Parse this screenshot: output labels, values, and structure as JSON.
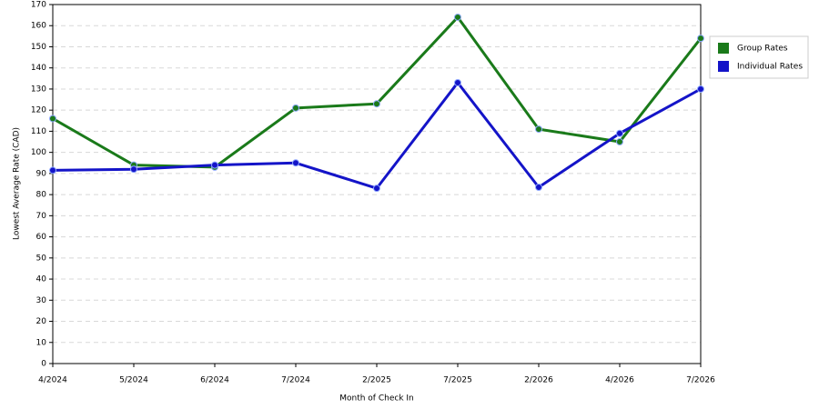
{
  "chart_data": {
    "type": "line",
    "x_label": "Month of Check In",
    "y_label": "Lowest Average Rate (CAD)",
    "categories": [
      "4/2024",
      "5/2024",
      "6/2024",
      "7/2024",
      "2/2025",
      "7/2025",
      "2/2026",
      "4/2026",
      "7/2026"
    ],
    "series": [
      {
        "name": "Group Rates",
        "color": "#1a7a1a",
        "values": [
          116,
          94,
          93,
          121,
          123,
          164,
          111,
          105,
          154
        ]
      },
      {
        "name": "Individual Rates",
        "color": "#1414c8",
        "values": [
          91.5,
          92,
          94,
          95,
          83,
          133,
          83.5,
          109,
          130
        ]
      }
    ],
    "ylim": [
      0,
      170
    ],
    "yticks": [
      0,
      10,
      20,
      30,
      40,
      50,
      60,
      70,
      80,
      90,
      100,
      110,
      120,
      130,
      140,
      150,
      160,
      170
    ],
    "grid": true,
    "legend": "upper-right"
  }
}
